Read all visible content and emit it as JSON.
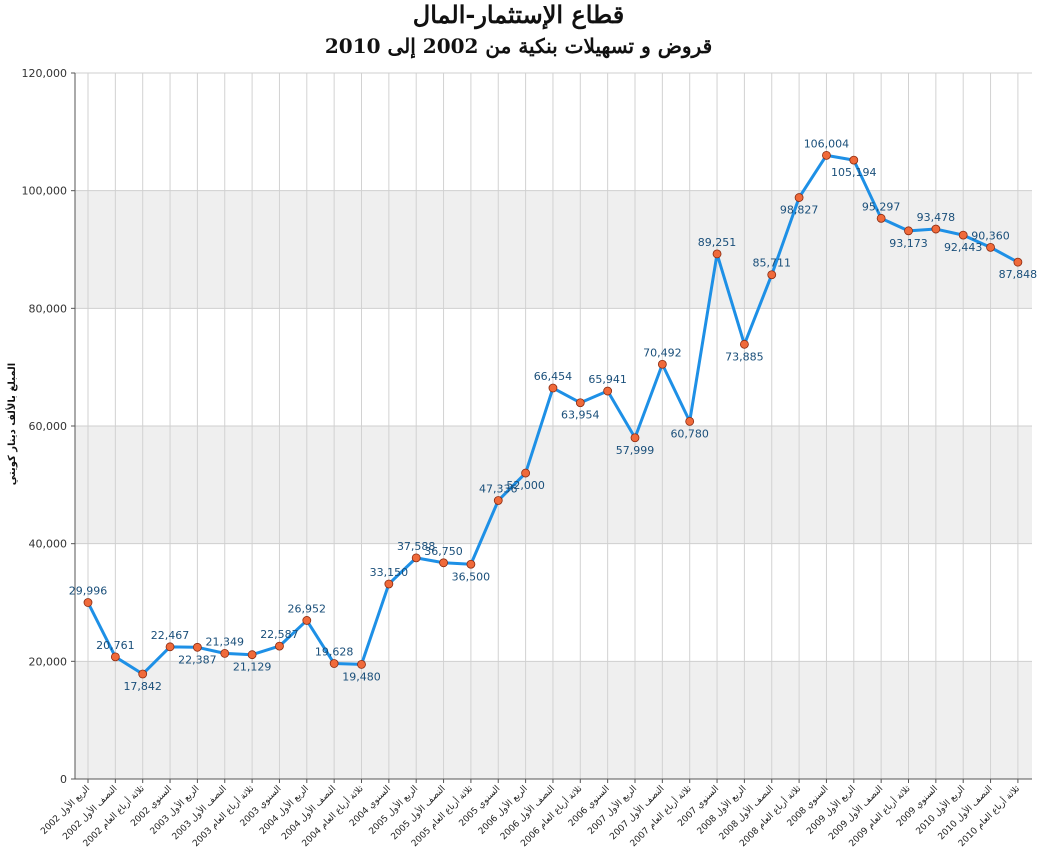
{
  "chart_data": {
    "type": "line",
    "title": "قطاع الإستثمار-المال",
    "subtitle": "قروض و تسهيلات بنكية من 2002 إلى 2010",
    "ylabel": "المبلغ بالألف دينار كويتي",
    "xlabel": "",
    "ylim": [
      0,
      120000
    ],
    "yticks": [
      "0",
      "20,000",
      "40,000",
      "60,000",
      "80,000",
      "100,000",
      "120,000"
    ],
    "grid": "vertical lines, alternating horizontal bands",
    "legend": "none",
    "line_color": "#1e90e6",
    "marker_color": "#f06a3a",
    "band_color": "#efefef",
    "categories": [
      "الربع الأول 2002",
      "النصف الأول 2002",
      "ثلاثة أرباع العام 2002",
      "السنوي 2002",
      "الربع الأول 2003",
      "النصف الأول 2003",
      "ثلاثة أرباع العام 2003",
      "السنوي 2003",
      "الربع الأول 2004",
      "النصف الأول 2004",
      "ثلاثة أرباع العام 2004",
      "السنوي 2004",
      "الربع الأول 2005",
      "النصف الأول 2005",
      "ثلاثة أرباع العام 2005",
      "السنوي 2005",
      "الربع الأول 2006",
      "النصف الأول 2006",
      "ثلاثة أرباع العام 2006",
      "السنوي 2006",
      "الربع الأول 2007",
      "النصف الأول 2007",
      "ثلاثة أرباع العام 2007",
      "السنوي 2007",
      "الربع الأول 2008",
      "النصف الأول 2008",
      "ثلاثة أرباع العام 2008",
      "السنوي 2008",
      "الربع الأول 2009",
      "النصف الأول 2009",
      "ثلاثة أرباع العام 2009",
      "السنوي 2009",
      "الربع الأول 2010",
      "النصف الأول 2010",
      "ثلاثة أرباع العام 2010"
    ],
    "values": [
      29996,
      20761,
      17842,
      22467,
      22387,
      21349,
      21129,
      22587,
      26952,
      19628,
      19480,
      33150,
      37588,
      36750,
      36500,
      47336,
      52000,
      66454,
      63954,
      65941,
      57999,
      70492,
      60780,
      89251,
      73885,
      85711,
      98827,
      106004,
      105194,
      95297,
      93173,
      93478,
      92443,
      90360,
      87848
    ],
    "labels": [
      "29,996",
      "20,761",
      "17,842",
      "22,467",
      "22,387",
      "21,349",
      "21,129",
      "22,587",
      "26,952",
      "19,628",
      "19,480",
      "33,150",
      "37,588",
      "36,750",
      "36,500",
      "47,336",
      "52,000",
      "66,454",
      "63,954",
      "65,941",
      "57,999",
      "70,492",
      "60,780",
      "89,251",
      "73,885",
      "85,711",
      "98,827",
      "106,004",
      "105,194",
      "95,297",
      "93,173",
      "93,478",
      "92,443",
      "90,360",
      "87,848"
    ]
  }
}
